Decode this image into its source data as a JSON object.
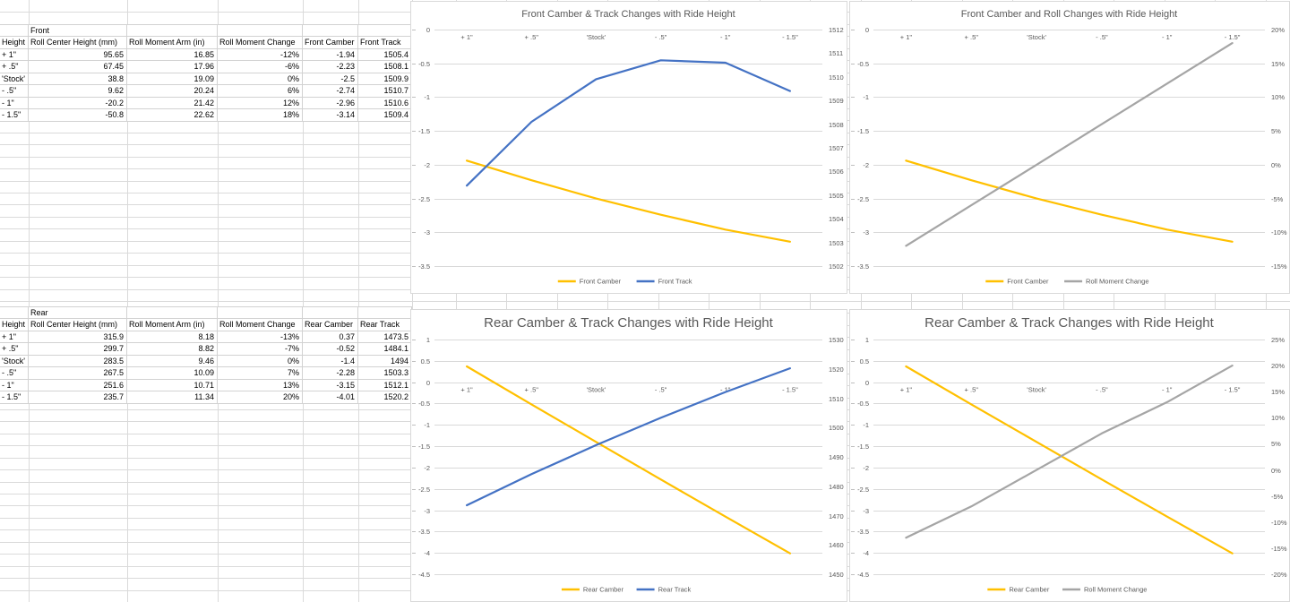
{
  "sheet": {
    "front_table": {
      "group_label": "Front",
      "columns": [
        "Height",
        "Roll Center Height (mm)",
        "Roll Moment Arm (in)",
        "Roll Moment Change",
        "Front Camber",
        "Front Track"
      ],
      "rows": [
        [
          "+ 1\"",
          "95.65",
          "16.85",
          "-12%",
          "-1.94",
          "1505.4"
        ],
        [
          "+ .5\"",
          "67.45",
          "17.96",
          "-6%",
          "-2.23",
          "1508.1"
        ],
        [
          "'Stock'",
          "38.8",
          "19.09",
          "0%",
          "-2.5",
          "1509.9"
        ],
        [
          "- .5\"",
          "9.62",
          "20.24",
          "6%",
          "-2.74",
          "1510.7"
        ],
        [
          "- 1\"",
          "-20.2",
          "21.42",
          "12%",
          "-2.96",
          "1510.6"
        ],
        [
          "- 1.5\"",
          "-50.8",
          "22.62",
          "18%",
          "-3.14",
          "1509.4"
        ]
      ]
    },
    "rear_table": {
      "group_label": "Rear",
      "columns": [
        "Height",
        "Roll Center Height (mm)",
        "Roll Moment Arm (in)",
        "Roll Moment Change",
        "Rear Camber",
        "Rear Track"
      ],
      "rows": [
        [
          "+ 1\"",
          "315.9",
          "8.18",
          "-13%",
          "0.37",
          "1473.5"
        ],
        [
          "+ .5\"",
          "299.7",
          "8.82",
          "-7%",
          "-0.52",
          "1484.1"
        ],
        [
          "'Stock'",
          "283.5",
          "9.46",
          "0%",
          "-1.4",
          "1494"
        ],
        [
          "- .5\"",
          "267.5",
          "10.09",
          "7%",
          "-2.28",
          "1503.3"
        ],
        [
          "- 1\"",
          "251.6",
          "10.71",
          "13%",
          "-3.15",
          "1512.1"
        ],
        [
          "- 1.5\"",
          "235.7",
          "11.34",
          "20%",
          "-4.01",
          "1520.2"
        ]
      ]
    }
  },
  "chart_data": [
    {
      "type": "line",
      "title": "Front Camber & Track Changes with Ride Height",
      "categories": [
        "+ 1\"",
        "+ .5\"",
        "'Stock'",
        "- .5\"",
        "- 1\"",
        "- 1.5\""
      ],
      "left_axis": {
        "min": -3.5,
        "max": 0,
        "step": 0.5,
        "format": "num"
      },
      "right_axis": {
        "min": 1502,
        "max": 1512,
        "step": 1,
        "format": "num"
      },
      "grid": true,
      "legend_position": "bottom",
      "series": [
        {
          "name": "Front Camber",
          "axis": "left",
          "color": "#FFC000",
          "values": [
            -1.94,
            -2.23,
            -2.5,
            -2.74,
            -2.96,
            -3.14
          ]
        },
        {
          "name": "Front Track",
          "axis": "right",
          "color": "#4472C4",
          "values": [
            1505.4,
            1508.1,
            1509.9,
            1510.7,
            1510.6,
            1509.4
          ]
        }
      ]
    },
    {
      "type": "line",
      "title": "Front Camber and Roll Changes with Ride Height",
      "categories": [
        "+ 1\"",
        "+ .5\"",
        "'Stock'",
        "- .5\"",
        "- 1\"",
        "- 1.5\""
      ],
      "left_axis": {
        "min": -3.5,
        "max": 0,
        "step": 0.5,
        "format": "num"
      },
      "right_axis": {
        "min": -15,
        "max": 20,
        "step": 5,
        "format": "pct"
      },
      "grid": true,
      "legend_position": "bottom",
      "series": [
        {
          "name": "Front Camber",
          "axis": "left",
          "color": "#FFC000",
          "values": [
            -1.94,
            -2.23,
            -2.5,
            -2.74,
            -2.96,
            -3.14
          ]
        },
        {
          "name": "Roll Moment Change",
          "axis": "right",
          "color": "#A5A5A5",
          "values": [
            -12,
            -6,
            0,
            6,
            12,
            18
          ]
        }
      ]
    },
    {
      "type": "line",
      "title": "Rear Camber & Track Changes with Ride Height",
      "categories": [
        "+ 1\"",
        "+ .5\"",
        "'Stock'",
        "- .5\"",
        "- 1\"",
        "- 1.5\""
      ],
      "left_axis": {
        "min": -4.5,
        "max": 1,
        "step": 0.5,
        "format": "num"
      },
      "right_axis": {
        "min": 1450,
        "max": 1530,
        "step": 10,
        "format": "num"
      },
      "grid": true,
      "legend_position": "bottom",
      "series": [
        {
          "name": "Rear Camber",
          "axis": "left",
          "color": "#FFC000",
          "values": [
            0.37,
            -0.52,
            -1.4,
            -2.28,
            -3.15,
            -4.01
          ]
        },
        {
          "name": "Rear Track",
          "axis": "right",
          "color": "#4472C4",
          "values": [
            1473.5,
            1484.1,
            1494,
            1503.3,
            1512.1,
            1520.2
          ]
        }
      ]
    },
    {
      "type": "line",
      "title": "Rear Camber & Track Changes with Ride Height",
      "categories": [
        "+ 1\"",
        "+ .5\"",
        "'Stock'",
        "- .5\"",
        "- 1\"",
        "- 1.5\""
      ],
      "left_axis": {
        "min": -4.5,
        "max": 1,
        "step": 0.5,
        "format": "num"
      },
      "right_axis": {
        "min": -20,
        "max": 25,
        "step": 5,
        "format": "pct"
      },
      "grid": true,
      "legend_position": "bottom",
      "series": [
        {
          "name": "Rear Camber",
          "axis": "left",
          "color": "#FFC000",
          "values": [
            0.37,
            -0.52,
            -1.4,
            -2.28,
            -3.15,
            -4.01
          ]
        },
        {
          "name": "Roll Moment Change",
          "axis": "right",
          "color": "#A5A5A5",
          "values": [
            -13,
            -7,
            0,
            7,
            13,
            20
          ]
        }
      ]
    }
  ]
}
